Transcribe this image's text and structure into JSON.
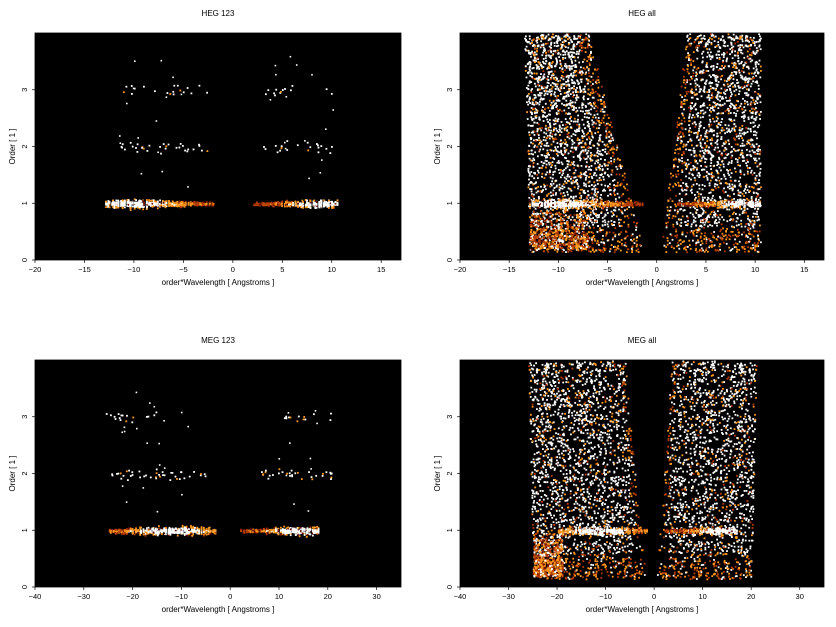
{
  "chart_data": [
    {
      "type": "heatmap",
      "title": "HEG 123",
      "xlabel": "order*Wavelength [ Angstroms ]",
      "ylabel": "Order [ 1 ]",
      "xlim": [
        -20,
        17
      ],
      "ylim": [
        0,
        4
      ],
      "xticks": [
        -20,
        -15,
        -10,
        -5,
        0,
        5,
        10,
        15
      ],
      "yticks": [
        0,
        1,
        2,
        3
      ],
      "background": "#000000",
      "colormap": [
        "#000000",
        "#5a0a00",
        "#b33a00",
        "#ff9a20",
        "#ffffff"
      ],
      "bands": [
        {
          "order": 1,
          "x_range": [
            -13,
            -2
          ],
          "peak_x": -10,
          "intensity": 1.0
        },
        {
          "order": 1,
          "x_range": [
            2,
            10.5
          ],
          "peak_x": 9,
          "intensity": 0.85
        },
        {
          "order": 2,
          "x_range": [
            -12.5,
            -2.5
          ],
          "intensity": 0.2
        },
        {
          "order": 2,
          "x_range": [
            3,
            10
          ],
          "intensity": 0.2
        },
        {
          "order": 3,
          "x_range": [
            -12.5,
            -2.5
          ],
          "intensity": 0.12
        },
        {
          "order": 3,
          "x_range": [
            3,
            10
          ],
          "intensity": 0.12
        }
      ],
      "background_fans": []
    },
    {
      "type": "heatmap",
      "title": "HEG all",
      "xlabel": "order*Wavelength [ Angstroms ]",
      "ylabel": "Order [ 1 ]",
      "xlim": [
        -20,
        17
      ],
      "ylim": [
        0,
        4
      ],
      "xticks": [
        -20,
        -15,
        -10,
        -5,
        0,
        5,
        10,
        15
      ],
      "yticks": [
        0,
        1,
        2,
        3
      ],
      "background": "#000000",
      "colormap": [
        "#000000",
        "#5a0a00",
        "#b33a00",
        "#ff9a20",
        "#ffffff"
      ],
      "bands": [
        {
          "order": 1,
          "x_range": [
            -13,
            -1.5
          ],
          "peak_x": -10,
          "intensity": 1.0
        },
        {
          "order": 1,
          "x_range": [
            2,
            10.5
          ],
          "peak_x": 9,
          "intensity": 0.85
        }
      ],
      "background_fans": [
        {
          "side": "negative",
          "outer_edge": [
            [
              -13,
              0.3
            ],
            [
              -13.5,
              4
            ]
          ],
          "inner_edge": [
            [
              -1.5,
              0.3
            ],
            [
              -7,
              4
            ]
          ],
          "density": 0.9
        },
        {
          "side": "positive",
          "outer_edge": [
            [
              10.5,
              0.3
            ],
            [
              10.5,
              4
            ]
          ],
          "inner_edge": [
            [
              0.5,
              0.3
            ],
            [
              3,
              4
            ]
          ],
          "density": 0.75
        }
      ]
    },
    {
      "type": "heatmap",
      "title": "MEG 123",
      "xlabel": "order*Wavelength [ Angstroms ]",
      "ylabel": "Order [ 1 ]",
      "xlim": [
        -40,
        35
      ],
      "ylim": [
        0,
        4
      ],
      "xticks": [
        -40,
        -30,
        -20,
        -10,
        0,
        10,
        20,
        30
      ],
      "yticks": [
        0,
        1,
        2,
        3
      ],
      "background": "#000000",
      "colormap": [
        "#000000",
        "#5a0a00",
        "#b33a00",
        "#ff9a20",
        "#ffffff"
      ],
      "bands": [
        {
          "order": 1,
          "x_range": [
            -25,
            -3
          ],
          "peak_x": -12,
          "intensity": 1.0
        },
        {
          "order": 1,
          "x_range": [
            2,
            18
          ],
          "peak_x": 14,
          "intensity": 0.9
        },
        {
          "order": 2,
          "x_range": [
            -26,
            -5
          ],
          "intensity": 0.25
        },
        {
          "order": 2,
          "x_range": [
            4,
            21
          ],
          "intensity": 0.25
        },
        {
          "order": 3,
          "x_range": [
            -26,
            -15
          ],
          "intensity": 0.2
        },
        {
          "order": 3,
          "x_range": [
            10,
            21
          ],
          "intensity": 0.15
        }
      ],
      "background_fans": []
    },
    {
      "type": "heatmap",
      "title": "MEG all",
      "xlabel": "order*Wavelength [ Angstroms ]",
      "ylabel": "Order [ 1 ]",
      "xlim": [
        -40,
        35
      ],
      "ylim": [
        0,
        4
      ],
      "xticks": [
        -40,
        -30,
        -20,
        -10,
        0,
        10,
        20,
        30
      ],
      "yticks": [
        0,
        1,
        2,
        3
      ],
      "background": "#000000",
      "colormap": [
        "#000000",
        "#5a0a00",
        "#b33a00",
        "#ff9a20",
        "#ffffff"
      ],
      "bands": [
        {
          "order": 1,
          "x_range": [
            -20,
            -1.5
          ],
          "peak_x": -12,
          "intensity": 1.0
        },
        {
          "order": 1,
          "x_range": [
            2,
            17
          ],
          "peak_x": 14,
          "intensity": 0.9
        }
      ],
      "background_fans": [
        {
          "side": "negative",
          "outer_edge": [
            [
              -25,
              0.3
            ],
            [
              -26,
              4
            ]
          ],
          "inner_edge": [
            [
              -2,
              0.3
            ],
            [
              -6,
              4
            ]
          ],
          "density": 0.85
        },
        {
          "side": "positive",
          "outer_edge": [
            [
              20,
              0.3
            ],
            [
              21,
              4
            ]
          ],
          "inner_edge": [
            [
              0.5,
              0.3
            ],
            [
              3.5,
              4
            ]
          ],
          "density": 0.7
        }
      ]
    }
  ]
}
